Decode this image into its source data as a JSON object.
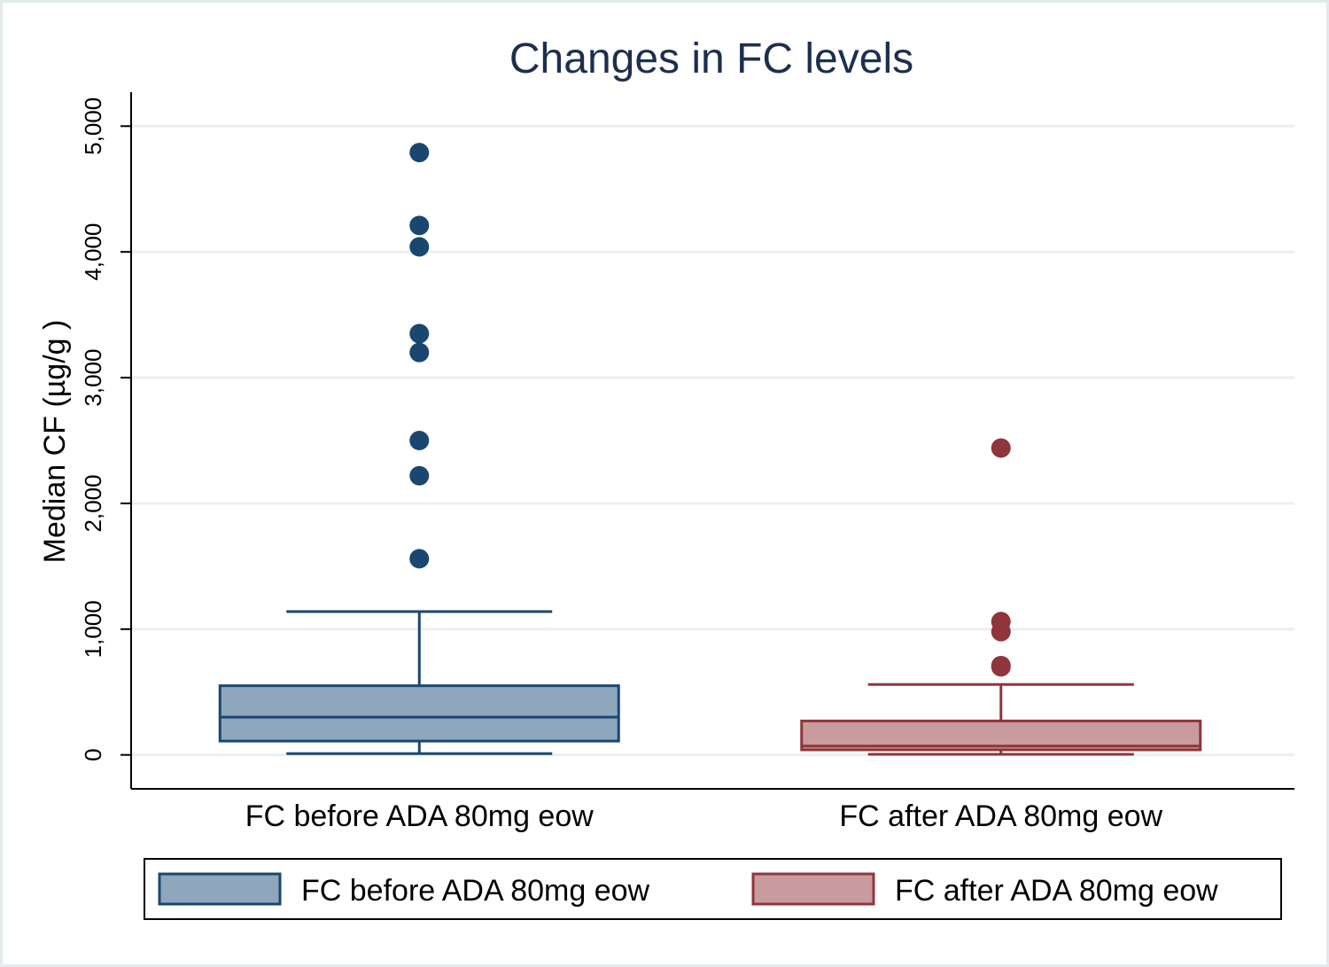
{
  "chart_data": {
    "type": "box",
    "title": "Changes in FC levels",
    "ylabel": "Median CF (µg/g )",
    "xlabel": "",
    "ylim": [
      -270,
      5270
    ],
    "yticks": [
      0,
      1000,
      2000,
      3000,
      4000,
      5000
    ],
    "ytick_labels": [
      "0",
      "1,000",
      "2,000",
      "3,000",
      "4,000",
      "5,000"
    ],
    "grid": true,
    "legend_position": "bottom",
    "series": [
      {
        "name": "FC before ADA 80mg eow",
        "category_label": "FC before ADA 80mg eow",
        "color_fill": "#8fa7bc",
        "color_line": "#1a476f",
        "whisker_low": 10,
        "q1": 110,
        "median": 300,
        "q3": 550,
        "whisker_high": 1140,
        "outliers": [
          1560,
          2220,
          2500,
          3200,
          3350,
          4040,
          4210,
          4790
        ]
      },
      {
        "name": "FC after ADA 80mg eow",
        "category_label": "FC after ADA 80mg eow",
        "color_fill": "#ca9b9e",
        "color_line": "#90353b",
        "whisker_low": 5,
        "q1": 40,
        "median": 70,
        "q3": 270,
        "whisker_high": 560,
        "outliers": [
          700,
          710,
          980,
          1060,
          2440
        ]
      }
    ]
  }
}
